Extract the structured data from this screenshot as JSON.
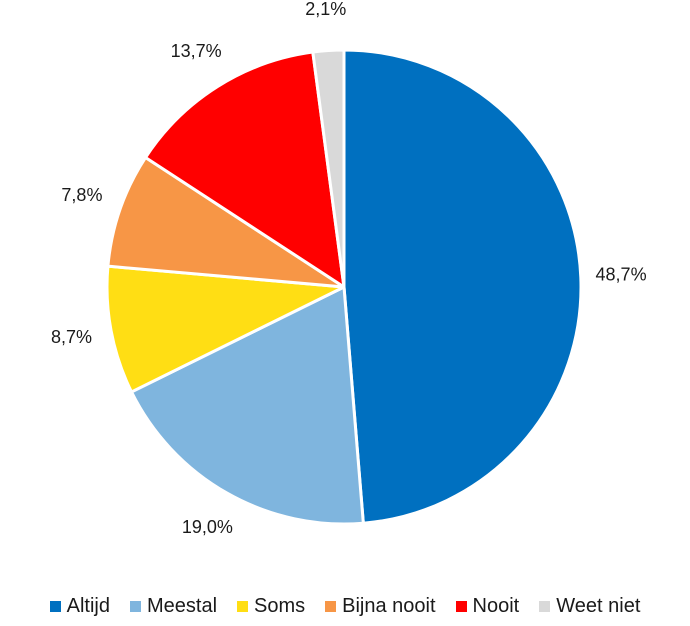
{
  "chart_data": {
    "type": "pie",
    "title": "",
    "start_angle_deg": 0,
    "direction": "clockwise",
    "legend_position": "bottom",
    "slices": [
      {
        "label": "Altijd",
        "value": 48.7,
        "value_label": "48,7%",
        "color": "#0070C0"
      },
      {
        "label": "Meestal",
        "value": 19.0,
        "value_label": "19,0%",
        "color": "#7FB5DE"
      },
      {
        "label": "Soms",
        "value": 8.7,
        "value_label": "8,7%",
        "color": "#FFDE14"
      },
      {
        "label": "Bijna nooit",
        "value": 7.8,
        "value_label": "7,8%",
        "color": "#F79646"
      },
      {
        "label": "Nooit",
        "value": 13.7,
        "value_label": "13,7%",
        "color": "#FF0000"
      },
      {
        "label": "Weet niet",
        "value": 2.1,
        "value_label": "2,1%",
        "color": "#D9D9D9"
      }
    ]
  }
}
